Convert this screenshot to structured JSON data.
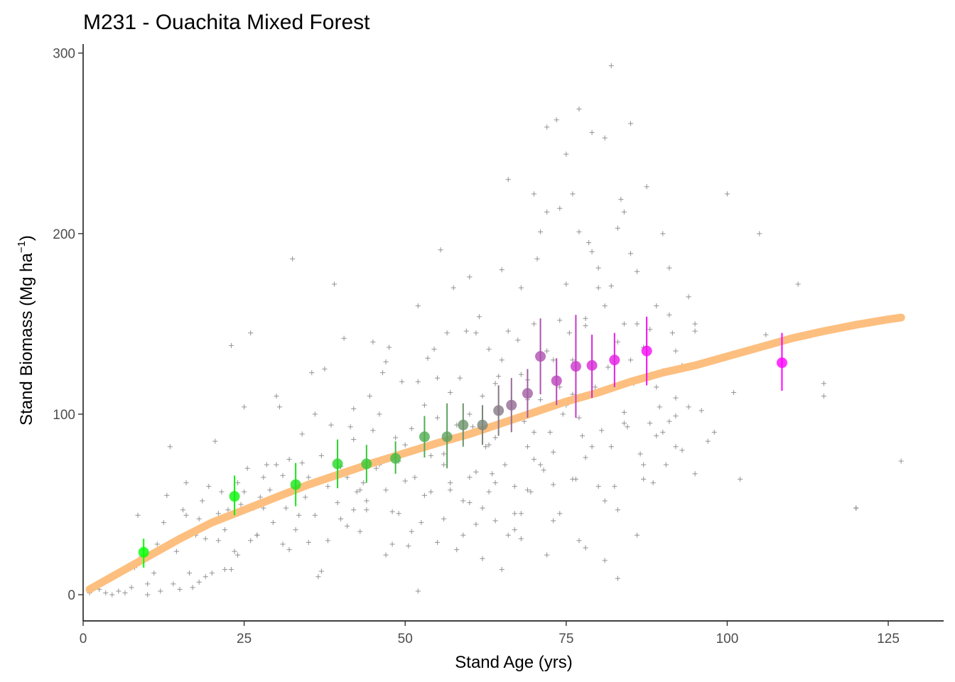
{
  "chart_data": {
    "type": "scatter",
    "title": "M231 - Ouachita Mixed Forest",
    "xlabel": "Stand Age (yrs)",
    "ylabel": "Stand Biomass (Mg ha",
    "ylabel_sup": "−1",
    "ylabel_close": ")",
    "xlim": [
      0,
      133.6
    ],
    "ylim": [
      -14.5,
      305
    ],
    "x_ticks": [
      0,
      25,
      50,
      75,
      100,
      125
    ],
    "y_ticks": [
      0,
      100,
      200,
      300
    ],
    "grid": false,
    "fit_curve": {
      "color": "#fdbf7f",
      "x": [
        1,
        5,
        10,
        15,
        20,
        25,
        30,
        35,
        40,
        45,
        50,
        55,
        60,
        65,
        70,
        75,
        80,
        85,
        90,
        95,
        100,
        105,
        110,
        115,
        120,
        125,
        127
      ],
      "y": [
        3,
        11,
        21,
        31,
        40,
        47,
        54,
        61,
        67,
        73,
        78.5,
        84,
        89,
        95,
        101,
        107,
        112,
        118,
        123,
        127,
        132,
        137,
        142,
        146,
        149.5,
        152.5,
        153.5
      ]
    },
    "binned_means": {
      "color_start": "#00ff00",
      "color_end": "#ff00ff",
      "points": [
        {
          "x": 9.4,
          "y": 23.5,
          "lo": 15,
          "hi": 31
        },
        {
          "x": 23.5,
          "y": 54.5,
          "lo": 44,
          "hi": 66
        },
        {
          "x": 33,
          "y": 61,
          "lo": 49,
          "hi": 73
        },
        {
          "x": 39.5,
          "y": 72.5,
          "lo": 59,
          "hi": 86
        },
        {
          "x": 44,
          "y": 72.5,
          "lo": 62,
          "hi": 83
        },
        {
          "x": 48.5,
          "y": 75.5,
          "lo": 67,
          "hi": 85
        },
        {
          "x": 53,
          "y": 87.5,
          "lo": 76,
          "hi": 99
        },
        {
          "x": 56.5,
          "y": 87.5,
          "lo": 70,
          "hi": 106
        },
        {
          "x": 59,
          "y": 94,
          "lo": 82,
          "hi": 106
        },
        {
          "x": 62,
          "y": 94,
          "lo": 83,
          "hi": 105
        },
        {
          "x": 64.5,
          "y": 102,
          "lo": 88,
          "hi": 116
        },
        {
          "x": 66.5,
          "y": 105,
          "lo": 90,
          "hi": 120
        },
        {
          "x": 69,
          "y": 111.5,
          "lo": 98,
          "hi": 125
        },
        {
          "x": 71,
          "y": 132,
          "lo": 111,
          "hi": 153
        },
        {
          "x": 73.5,
          "y": 118.5,
          "lo": 105,
          "hi": 131
        },
        {
          "x": 76.5,
          "y": 126.5,
          "lo": 98,
          "hi": 155
        },
        {
          "x": 79,
          "y": 127,
          "lo": 109,
          "hi": 144
        },
        {
          "x": 82.5,
          "y": 130,
          "lo": 115,
          "hi": 145
        },
        {
          "x": 87.5,
          "y": 135,
          "lo": 116,
          "hi": 154
        },
        {
          "x": 108.5,
          "y": 128.5,
          "lo": 113,
          "hi": 145
        }
      ]
    },
    "scatter": {
      "color": "#8c8c8c",
      "points": [
        [
          1,
          1
        ],
        [
          2.5,
          3
        ],
        [
          3.5,
          1
        ],
        [
          4.5,
          0
        ],
        [
          5.5,
          2
        ],
        [
          6.5,
          1
        ],
        [
          7.5,
          4
        ],
        [
          8,
          15
        ],
        [
          8.5,
          44
        ],
        [
          9,
          21
        ],
        [
          10,
          6
        ],
        [
          10,
          0
        ],
        [
          11,
          12
        ],
        [
          11.5,
          28
        ],
        [
          12,
          2
        ],
        [
          12.5,
          40
        ],
        [
          13,
          55
        ],
        [
          13.5,
          82
        ],
        [
          14,
          6
        ],
        [
          14.5,
          24
        ],
        [
          15,
          3
        ],
        [
          15.5,
          47
        ],
        [
          16,
          62
        ],
        [
          16.5,
          12
        ],
        [
          17,
          4
        ],
        [
          17.5,
          33
        ],
        [
          18,
          7
        ],
        [
          18.5,
          52
        ],
        [
          19,
          10
        ],
        [
          19.5,
          60
        ],
        [
          20,
          12
        ],
        [
          20.5,
          85
        ],
        [
          21,
          45
        ],
        [
          21.5,
          57
        ],
        [
          22,
          36
        ],
        [
          22.5,
          47
        ],
        [
          23,
          14
        ],
        [
          23,
          138
        ],
        [
          23.5,
          24
        ],
        [
          24,
          62
        ],
        [
          24.5,
          50
        ],
        [
          25,
          104
        ],
        [
          25.5,
          70
        ],
        [
          26,
          145
        ],
        [
          26.5,
          48
        ],
        [
          27,
          33
        ],
        [
          27.5,
          54
        ],
        [
          28,
          65
        ],
        [
          28.5,
          72
        ],
        [
          29,
          58
        ],
        [
          29.5,
          40
        ],
        [
          30,
          110
        ],
        [
          30.5,
          104
        ],
        [
          31,
          28
        ],
        [
          31.5,
          48
        ],
        [
          32,
          75
        ],
        [
          32.5,
          186
        ],
        [
          33,
          36
        ],
        [
          33.5,
          44
        ],
        [
          34,
          89
        ],
        [
          34.5,
          54
        ],
        [
          35,
          65
        ],
        [
          35.5,
          123
        ],
        [
          36,
          44
        ],
        [
          36.5,
          10
        ],
        [
          37,
          77
        ],
        [
          37.5,
          125
        ],
        [
          38,
          30
        ],
        [
          38.5,
          94
        ],
        [
          39,
          172
        ],
        [
          39.5,
          51
        ],
        [
          40,
          42
        ],
        [
          40.5,
          142
        ],
        [
          41,
          65
        ],
        [
          41.5,
          93
        ],
        [
          42,
          103
        ],
        [
          42.5,
          57
        ],
        [
          43,
          35
        ],
        [
          43.5,
          62
        ],
        [
          44,
          47
        ],
        [
          44.5,
          110
        ],
        [
          45,
          140
        ],
        [
          45.5,
          70
        ],
        [
          46,
          100
        ],
        [
          46.5,
          123
        ],
        [
          47,
          58
        ],
        [
          47.5,
          137
        ],
        [
          48,
          46
        ],
        [
          48.5,
          87
        ],
        [
          49,
          74
        ],
        [
          49.5,
          118
        ],
        [
          50,
          83
        ],
        [
          50.5,
          27
        ],
        [
          51,
          92
        ],
        [
          51.5,
          65
        ],
        [
          52,
          160
        ],
        [
          52.5,
          40
        ],
        [
          53,
          105
        ],
        [
          53.5,
          131
        ],
        [
          54,
          57
        ],
        [
          54.5,
          136
        ],
        [
          55,
          98
        ],
        [
          55.5,
          191
        ],
        [
          56,
          78
        ],
        [
          56.5,
          145
        ],
        [
          57,
          62
        ],
        [
          57.5,
          170
        ],
        [
          58,
          94
        ],
        [
          58.5,
          120
        ],
        [
          59,
          52
        ],
        [
          59.5,
          146
        ],
        [
          60,
          176
        ],
        [
          60.5,
          93
        ],
        [
          61,
          68
        ],
        [
          61.5,
          154
        ],
        [
          62,
          110
        ],
        [
          62.5,
          82
        ],
        [
          63,
          136
        ],
        [
          63.5,
          67
        ],
        [
          64,
          41
        ],
        [
          64.5,
          121
        ],
        [
          65,
          180
        ],
        [
          65.5,
          72
        ],
        [
          66,
          230
        ],
        [
          66.5,
          98
        ],
        [
          67,
          60
        ],
        [
          67.5,
          141
        ],
        [
          68,
          170
        ],
        [
          68.5,
          96
        ],
        [
          69,
          119
        ],
        [
          69.5,
          57
        ],
        [
          70,
          150
        ],
        [
          70.5,
          186
        ],
        [
          71,
          201
        ],
        [
          71.5,
          69
        ],
        [
          72,
          259
        ],
        [
          72.5,
          90
        ],
        [
          73,
          130
        ],
        [
          73.5,
          263
        ],
        [
          74,
          214
        ],
        [
          74.5,
          100
        ],
        [
          75,
          172
        ],
        [
          75.5,
          145
        ],
        [
          76,
          222
        ],
        [
          76.5,
          64
        ],
        [
          77,
          269
        ],
        [
          77.5,
          88
        ],
        [
          78,
          153
        ],
        [
          78.5,
          195
        ],
        [
          79,
          256
        ],
        [
          79.5,
          115
        ],
        [
          80,
          170
        ],
        [
          80.5,
          91
        ],
        [
          81,
          253
        ],
        [
          81.5,
          126
        ],
        [
          82,
          293
        ],
        [
          82.5,
          60
        ],
        [
          83,
          140
        ],
        [
          83.5,
          219
        ],
        [
          84,
          150
        ],
        [
          84.5,
          93
        ],
        [
          85,
          261
        ],
        [
          85.5,
          117
        ],
        [
          86,
          179
        ],
        [
          86.5,
          78
        ],
        [
          87,
          137
        ],
        [
          87.5,
          226
        ],
        [
          88,
          95
        ],
        [
          88.5,
          62
        ],
        [
          89,
          160
        ],
        [
          89.5,
          104
        ],
        [
          90,
          124
        ],
        [
          90.5,
          72
        ],
        [
          91,
          181
        ],
        [
          91.5,
          145
        ],
        [
          92,
          99
        ],
        [
          93,
          80
        ],
        [
          94,
          165
        ],
        [
          95,
          146
        ],
        [
          96,
          102
        ],
        [
          98,
          90
        ],
        [
          100,
          222
        ],
        [
          101,
          112
        ],
        [
          102,
          64
        ],
        [
          105,
          200
        ],
        [
          106,
          144
        ],
        [
          111,
          172
        ],
        [
          115,
          117
        ],
        [
          115,
          110
        ],
        [
          120,
          48
        ],
        [
          127,
          74
        ],
        [
          120,
          48
        ],
        [
          83,
          9
        ],
        [
          81,
          19
        ],
        [
          65,
          14
        ],
        [
          44,
          52
        ],
        [
          55,
          29
        ],
        [
          61,
          39
        ],
        [
          57,
          112
        ],
        [
          71,
          108
        ],
        [
          76,
          64
        ],
        [
          67,
          36
        ],
        [
          52,
          2
        ],
        [
          64,
          62
        ],
        [
          43,
          58
        ],
        [
          79,
          190
        ],
        [
          85,
          130
        ],
        [
          89,
          115
        ],
        [
          92,
          82
        ],
        [
          60,
          65
        ],
        [
          58,
          25
        ],
        [
          48,
          28
        ],
        [
          40,
          71
        ],
        [
          37,
          13
        ],
        [
          32,
          25
        ],
        [
          26,
          30
        ],
        [
          18,
          42
        ],
        [
          22,
          14
        ],
        [
          15,
          30
        ],
        [
          69,
          58
        ],
        [
          73,
          79
        ],
        [
          77,
          30
        ],
        [
          81,
          52
        ],
        [
          86,
          33
        ],
        [
          66,
          146
        ],
        [
          63,
          83
        ],
        [
          56,
          42
        ],
        [
          50,
          63
        ],
        [
          46,
          72
        ],
        [
          42,
          86
        ],
        [
          38,
          60
        ],
        [
          35,
          29
        ],
        [
          31,
          66
        ],
        [
          28,
          48
        ],
        [
          24,
          22
        ],
        [
          62,
          20
        ],
        [
          68,
          45
        ],
        [
          74,
          45
        ],
        [
          78,
          76
        ],
        [
          83,
          47
        ],
        [
          87,
          64
        ],
        [
          91,
          96
        ],
        [
          95,
          67
        ],
        [
          70,
          90
        ],
        [
          72,
          135
        ],
        [
          75,
          105
        ],
        [
          80,
          113
        ],
        [
          84,
          101
        ],
        [
          88,
          147
        ],
        [
          91,
          155
        ],
        [
          93,
          127
        ],
        [
          97,
          85
        ],
        [
          54,
          77
        ],
        [
          59,
          33
        ],
        [
          64,
          87
        ],
        [
          68,
          122
        ],
        [
          72,
          22
        ],
        [
          76,
          130
        ],
        [
          80,
          60
        ],
        [
          84,
          95
        ],
        [
          47,
          22
        ],
        [
          53,
          55
        ],
        [
          58,
          87
        ],
        [
          63,
          57
        ],
        [
          67,
          45
        ],
        [
          71,
          72
        ],
        [
          74,
          115
        ],
        [
          78,
          149
        ],
        [
          82,
          82
        ],
        [
          86,
          119
        ],
        [
          89,
          88
        ],
        [
          92,
          135
        ],
        [
          95,
          150
        ],
        [
          61,
          145
        ],
        [
          66,
          33
        ],
        [
          69,
          108
        ],
        [
          73,
          41
        ],
        [
          77,
          98
        ],
        [
          81,
          160
        ],
        [
          85,
          189
        ],
        [
          90,
          90
        ],
        [
          45,
          91
        ],
        [
          49,
          45
        ],
        [
          55,
          120
        ],
        [
          60,
          100
        ],
        [
          65,
          130
        ],
        [
          70,
          75
        ],
        [
          74,
          152
        ],
        [
          79,
          82
        ],
        [
          83,
          203
        ],
        [
          88,
          120
        ],
        [
          70,
          222
        ],
        [
          72,
          212
        ],
        [
          75,
          244
        ],
        [
          77,
          201
        ],
        [
          80,
          181
        ],
        [
          82,
          171
        ],
        [
          84,
          212
        ],
        [
          86,
          150
        ],
        [
          90,
          200
        ],
        [
          76,
          111
        ],
        [
          68,
          31
        ],
        [
          62,
          48
        ],
        [
          57,
          58
        ],
        [
          52,
          118
        ],
        [
          47,
          129
        ],
        [
          41,
          38
        ],
        [
          36,
          100
        ],
        [
          30,
          72
        ],
        [
          27,
          33
        ],
        [
          21,
          30
        ],
        [
          16,
          44
        ],
        [
          12,
          26
        ],
        [
          19,
          31
        ],
        [
          25,
          57
        ],
        [
          34,
          73
        ],
        [
          42,
          47
        ],
        [
          51,
          35
        ],
        [
          56,
          72
        ],
        [
          60,
          51
        ],
        [
          64,
          117
        ],
        [
          69,
          82
        ],
        [
          73,
          61
        ],
        [
          78,
          26
        ],
        [
          82,
          114
        ],
        [
          87,
          72
        ],
        [
          92,
          109
        ],
        [
          94,
          104
        ]
      ]
    }
  }
}
